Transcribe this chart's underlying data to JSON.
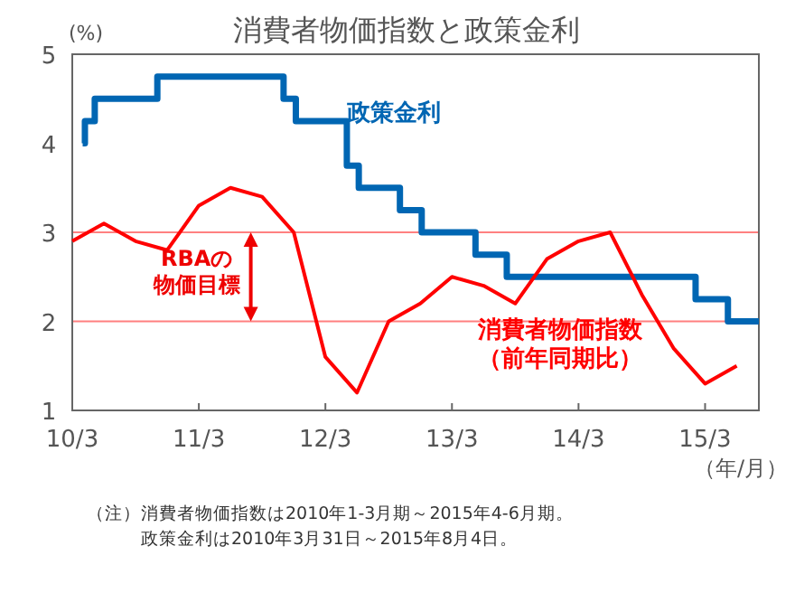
{
  "chart_data": {
    "type": "line",
    "title": "消費者物価指数と政策金利",
    "ylabel": "(%)",
    "xlabel": "（年/月）",
    "x": [
      "2010-03",
      "2010-06",
      "2010-09",
      "2010-12",
      "2011-03",
      "2011-06",
      "2011-09",
      "2011-12",
      "2012-03",
      "2012-06",
      "2012-09",
      "2012-12",
      "2013-03",
      "2013-06",
      "2013-09",
      "2013-12",
      "2014-03",
      "2014-06",
      "2014-09",
      "2014-12",
      "2015-03",
      "2015-06"
    ],
    "series": [
      {
        "name": "政策金利",
        "type": "step",
        "color": "#0066b3",
        "x": [
          "2010-03-31",
          "2010-04-07",
          "2010-05-05",
          "2010-11-03",
          "2011-11-02",
          "2011-12-07",
          "2012-05-02",
          "2012-06-06",
          "2012-10-03",
          "2012-12-05",
          "2013-05-08",
          "2013-08-07",
          "2015-02-04",
          "2015-05-06",
          "2015-08-04"
        ],
        "values": [
          4,
          4.25,
          4.5,
          4.75,
          4.5,
          4.25,
          3.75,
          3.5,
          3.25,
          3,
          2.75,
          2.5,
          2.25,
          2,
          2
        ]
      },
      {
        "name": "消費者物価指数（前年同期比）",
        "color": "#ff0000",
        "values": [
          2.9,
          3.1,
          2.9,
          2.8,
          3.3,
          3.5,
          3.4,
          3.0,
          1.6,
          1.2,
          2.0,
          2.2,
          2.5,
          2.4,
          2.2,
          2.7,
          2.9,
          3.0,
          2.3,
          1.7,
          1.3,
          1.5
        ]
      }
    ],
    "xlim": [
      "2010-03",
      "2015-08-04"
    ],
    "xticks": [
      {
        "value": "2010-03",
        "label": "10/3"
      },
      {
        "value": "2011-03",
        "label": "11/3"
      },
      {
        "value": "2012-03",
        "label": "12/3"
      },
      {
        "value": "2013-03",
        "label": "13/3"
      },
      {
        "value": "2014-03",
        "label": "14/3"
      },
      {
        "value": "2015-03",
        "label": "15/3"
      }
    ],
    "ylim": [
      1,
      5
    ],
    "yticks": [
      1,
      2,
      3,
      4,
      5
    ],
    "ref_lines": [
      {
        "axis": "y",
        "value": 3,
        "color": "#ff8080"
      },
      {
        "axis": "y",
        "value": 2,
        "color": "#ff8080"
      }
    ],
    "annotations": [
      "RBAの物価目標",
      "（注）消費者物価指数は2010年1-3月期～2015年4-6月期。",
      "　　　政策金利は2010年3月31日～2015年8月4日。"
    ],
    "grid": false,
    "legend": false,
    "marker": "none",
    "line_style": "solid"
  }
}
